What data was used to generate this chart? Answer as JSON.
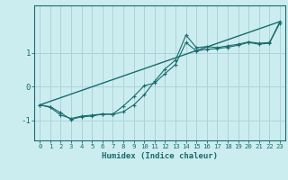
{
  "xlabel": "Humidex (Indice chaleur)",
  "background_color": "#ccedf0",
  "grid_color": "#aad4d8",
  "line_color": "#1a6b6b",
  "xlim": [
    -0.5,
    23.5
  ],
  "ylim": [
    -1.6,
    2.4
  ],
  "yticks": [
    -1,
    0,
    1
  ],
  "xticks": [
    0,
    1,
    2,
    3,
    4,
    5,
    6,
    7,
    8,
    9,
    10,
    11,
    12,
    13,
    14,
    15,
    16,
    17,
    18,
    19,
    20,
    21,
    22,
    23
  ],
  "line1_x": [
    0,
    1,
    2,
    3,
    4,
    5,
    6,
    7,
    8,
    9,
    10,
    11,
    12,
    13,
    14,
    15,
    16,
    17,
    18,
    19,
    20,
    21,
    22,
    23
  ],
  "line1_y": [
    -0.55,
    -0.62,
    -0.85,
    -0.95,
    -0.88,
    -0.85,
    -0.82,
    -0.83,
    -0.75,
    -0.55,
    -0.25,
    0.15,
    0.52,
    0.78,
    1.52,
    1.15,
    1.18,
    1.15,
    1.2,
    1.25,
    1.32,
    1.28,
    1.3,
    1.92
  ],
  "line2_x": [
    0,
    1,
    2,
    3,
    4,
    5,
    6,
    7,
    8,
    9,
    10,
    11,
    12,
    13,
    14,
    15,
    16,
    17,
    18,
    19,
    20,
    21,
    22,
    23
  ],
  "line2_y": [
    -0.55,
    -0.6,
    -0.78,
    -0.98,
    -0.9,
    -0.88,
    -0.82,
    -0.82,
    -0.58,
    -0.3,
    0.02,
    0.1,
    0.38,
    0.65,
    1.3,
    1.05,
    1.1,
    1.12,
    1.16,
    1.22,
    1.3,
    1.25,
    1.28,
    1.88
  ],
  "line3_x": [
    0,
    23
  ],
  "line3_y": [
    -0.55,
    1.92
  ]
}
